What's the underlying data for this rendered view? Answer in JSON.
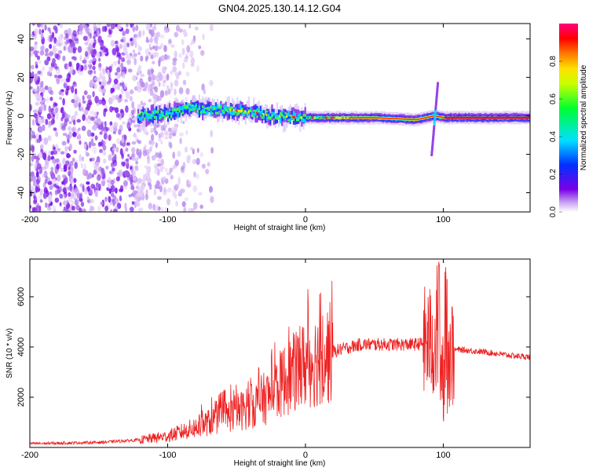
{
  "title": "GN04.2025.130.14.12.G04",
  "colors": {
    "snr_line": "#ee2222",
    "frame": "#000000"
  },
  "chart_data": [
    {
      "type": "heatmap",
      "xlabel": "Height of straight line (km)",
      "ylabel": "Frequency (Hz)",
      "xlim": [
        -200,
        163
      ],
      "ylim": [
        -50,
        48
      ],
      "xticks": [
        "-200",
        "-100",
        "0",
        "100"
      ],
      "yticks": [
        "40",
        "20",
        "0",
        "-20",
        "-40"
      ],
      "colorbar_label": "Normalized spectral amplitude",
      "colorbar_ticks": [
        "0.0",
        "0.2",
        "0.4",
        "0.6",
        "0.8"
      ],
      "colorbar_range": [
        0,
        1
      ],
      "colormap": "purple-blue-cyan-green-yellow-orange-red-magenta",
      "ridge": [
        [
          -120,
          0
        ],
        [
          -100,
          1
        ],
        [
          -85,
          4
        ],
        [
          -70,
          3
        ],
        [
          -55,
          3
        ],
        [
          -40,
          2
        ],
        [
          -25,
          0
        ],
        [
          0,
          -1
        ],
        [
          50,
          -1
        ],
        [
          80,
          -2
        ],
        [
          93,
          0
        ],
        [
          100,
          -1
        ],
        [
          163,
          -1
        ]
      ],
      "spike": {
        "x": 94,
        "yrange": [
          -20,
          18
        ]
      }
    },
    {
      "type": "line",
      "xlabel": "Height of straight line (km)",
      "ylabel": "SNR (10 * v/v)",
      "xlim": [
        -200,
        163
      ],
      "ylim": [
        0,
        7500
      ],
      "xticks": [
        "-200",
        "-100",
        "0",
        "100"
      ],
      "yticks": [
        "2000",
        "4000",
        "6000"
      ],
      "series": [
        {
          "trend": [
            [
              -200,
              150
            ],
            [
              -150,
              200
            ],
            [
              -120,
              300
            ],
            [
              -100,
              450
            ],
            [
              -85,
              700
            ],
            [
              -70,
              1000
            ],
            [
              -55,
              1300
            ],
            [
              -40,
              1600
            ],
            [
              -25,
              2100
            ],
            [
              -15,
              2700
            ],
            [
              0,
              3300
            ],
            [
              15,
              3700
            ],
            [
              25,
              3900
            ],
            [
              40,
              4100
            ],
            [
              60,
              4100
            ],
            [
              80,
              4100
            ],
            [
              90,
              4200
            ],
            [
              96,
              4000
            ],
            [
              100,
              3000
            ],
            [
              104,
              3800
            ],
            [
              110,
              3900
            ],
            [
              130,
              3800
            ],
            [
              150,
              3650
            ],
            [
              163,
              3600
            ]
          ]
        }
      ]
    }
  ]
}
